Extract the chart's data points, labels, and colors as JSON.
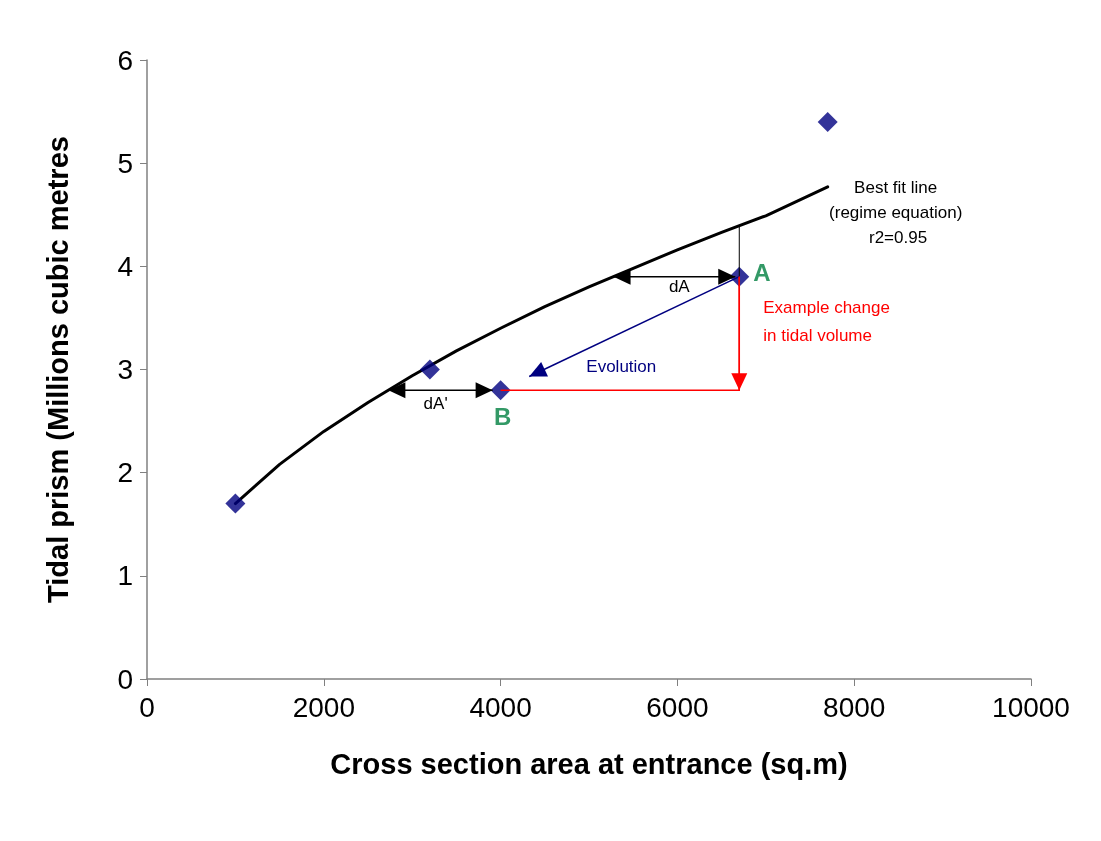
{
  "chart_data": {
    "type": "scatter",
    "xlabel": "Cross section area at entrance (sq.m)",
    "ylabel": "Tidal prism (Millions cubic metres",
    "xlim": [
      0,
      10000
    ],
    "xticks": [
      0,
      2000,
      4000,
      6000,
      8000,
      10000
    ],
    "ylim": [
      0,
      6
    ],
    "yticks": [
      0,
      1,
      2,
      3,
      4,
      5,
      6
    ],
    "grid": false,
    "marker": "diamond",
    "series": [
      {
        "color": "#000080",
        "x": [
          1000,
          3200,
          6700,
          7700
        ],
        "values": [
          1.7,
          3.0,
          3.9,
          5.4
        ]
      },
      {
        "color": "#000080",
        "x": [
          4000
        ],
        "values": [
          2.8
        ]
      },
      {
        "type": "line",
        "color": "#000000",
        "marker": "none",
        "x": [
          1000,
          1500,
          2000,
          2500,
          3000,
          3500,
          4000,
          4500,
          5000,
          5500,
          6000,
          6500,
          7000,
          7700
        ],
        "values": [
          1.7,
          2.08,
          2.4,
          2.68,
          2.94,
          3.18,
          3.4,
          3.61,
          3.8,
          3.98,
          4.16,
          4.33,
          4.49,
          4.77
        ]
      }
    ],
    "annotations": [
      {
        "text": "Best fit line\n(regime equation)\n r2=0.95",
        "x": 7700,
        "y": 4.77
      },
      {
        "text": "A",
        "x": 6700,
        "y": 3.9
      },
      {
        "text": "B",
        "x": 4000,
        "y": 2.8
      },
      "dA",
      "dA'",
      "Evolution",
      "Example change\nin tidal volume"
    ]
  }
}
